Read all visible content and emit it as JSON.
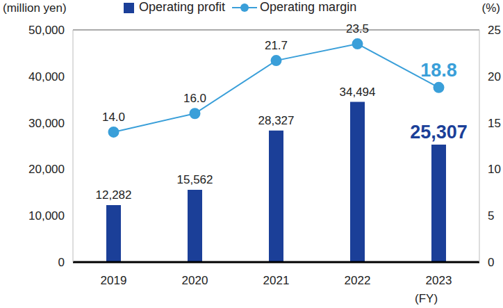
{
  "chart_data": {
    "type": "bar",
    "categories": [
      "2019",
      "2020",
      "2021",
      "2022",
      "2023"
    ],
    "series": [
      {
        "name": "Operating profit",
        "type": "bar",
        "color": "#1b3f98",
        "values": [
          12282,
          15562,
          28327,
          34494,
          25307
        ],
        "value_labels": [
          "12,282",
          "15,562",
          "28,327",
          "34,494",
          "25,307"
        ]
      },
      {
        "name": "Operating margin",
        "type": "line",
        "axis": "y2",
        "color": "#3a9fd9",
        "marker": "circle",
        "values": [
          14.0,
          16.0,
          21.7,
          23.5,
          18.8
        ],
        "value_labels": [
          "14.0",
          "16.0",
          "21.7",
          "23.5",
          "18.8"
        ]
      }
    ],
    "ylabel": "(million yen)",
    "y2label": "(%)",
    "xlabel": "(FY)",
    "ylim": [
      0,
      50000
    ],
    "yticks": [
      0,
      {
        "value": 10000,
        "label": "10,000"
      },
      {
        "value": 20000,
        "label": "20,000"
      },
      {
        "value": 30000,
        "label": "30,000"
      },
      {
        "value": 40000,
        "label": "40,000"
      },
      {
        "value": 50000,
        "label": "50,000"
      }
    ],
    "y2lim": [
      0,
      25
    ],
    "y2ticks": [
      0,
      5,
      10,
      15,
      20,
      25
    ],
    "grid": true,
    "legend": "top-left",
    "data_labels": true
  }
}
